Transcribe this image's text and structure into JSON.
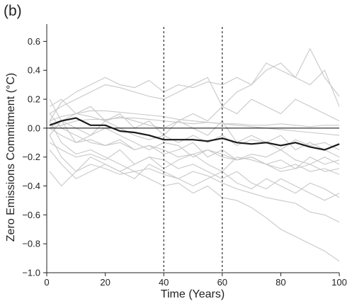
{
  "panel_label": "(b)",
  "chart_data": {
    "type": "line",
    "title": "",
    "xlabel": "Time (Years)",
    "ylabel": "Zero Emissions Commitment (°C)",
    "xlim": [
      0,
      100
    ],
    "ylim": [
      -1.0,
      0.7
    ],
    "xticks": [
      0,
      20,
      40,
      60,
      80,
      100
    ],
    "xtick_labels": [
      "0",
      "20",
      "40",
      "60",
      "80",
      "100"
    ],
    "yticks": [
      0.6,
      0.4,
      0.2,
      0.0,
      -0.2,
      -0.4,
      -0.6,
      -0.8,
      -1.0
    ],
    "ytick_labels": [
      "0.6",
      "0.4",
      "0.2",
      "0.0",
      "−0.2",
      "−0.4",
      "−0.6",
      "−0.8",
      "−1.0"
    ],
    "reference_lines": {
      "horizontal_y": 0.0,
      "vertical_dashed_x": [
        40,
        60
      ]
    },
    "colors": {
      "ensemble_members": "#c8c8c8",
      "ensemble_mean": "#1a1a1a",
      "reference": "#000000"
    },
    "x": [
      1,
      5,
      10,
      15,
      20,
      25,
      30,
      35,
      40,
      45,
      50,
      55,
      60,
      65,
      70,
      75,
      80,
      85,
      90,
      95,
      100
    ],
    "series": [
      {
        "role": "mean",
        "values": [
          0.02,
          0.05,
          0.07,
          0.02,
          0.02,
          -0.02,
          -0.03,
          -0.05,
          -0.08,
          -0.08,
          -0.08,
          -0.09,
          -0.07,
          -0.1,
          -0.11,
          -0.1,
          -0.12,
          -0.1,
          -0.13,
          -0.15,
          -0.11
        ]
      },
      {
        "role": "member",
        "values": [
          0.05,
          0.18,
          0.25,
          0.3,
          0.35,
          0.3,
          0.28,
          0.33,
          0.25,
          0.3,
          0.28,
          0.32,
          0.3,
          0.35,
          0.3,
          0.45,
          0.4,
          0.35,
          0.55,
          0.35,
          0.22
        ]
      },
      {
        "role": "member",
        "values": [
          0.1,
          0.15,
          0.2,
          0.25,
          0.3,
          0.28,
          0.25,
          0.22,
          0.2,
          0.25,
          0.3,
          0.35,
          0.15,
          0.25,
          0.3,
          0.4,
          0.45,
          0.35,
          0.3,
          0.4,
          0.15
        ]
      },
      {
        "role": "member",
        "values": [
          0.05,
          0.08,
          0.1,
          0.12,
          0.12,
          0.11,
          0.1,
          0.09,
          0.08,
          0.06,
          0.05,
          0.04,
          0.03,
          0.02,
          0.01,
          0.0,
          -0.01,
          -0.02,
          -0.03,
          -0.04,
          -0.05
        ]
      },
      {
        "role": "member",
        "values": [
          0.0,
          0.02,
          0.05,
          0.06,
          0.06,
          0.07,
          0.07,
          0.06,
          0.05,
          0.04,
          0.03,
          0.04,
          0.03,
          0.03,
          0.02,
          0.02,
          0.03,
          0.02,
          0.01,
          0.02,
          0.02
        ]
      },
      {
        "role": "member",
        "values": [
          -0.05,
          -0.2,
          -0.3,
          -0.25,
          -0.28,
          -0.32,
          -0.3,
          -0.35,
          -0.4,
          -0.38,
          -0.45,
          -0.4,
          -0.48,
          -0.5,
          -0.55,
          -0.62,
          -0.7,
          -0.75,
          -0.8,
          -0.85,
          -0.92
        ]
      },
      {
        "role": "member",
        "values": [
          0.05,
          -0.1,
          -0.18,
          -0.15,
          -0.2,
          -0.25,
          -0.3,
          -0.28,
          -0.32,
          -0.35,
          -0.3,
          -0.33,
          -0.38,
          -0.42,
          -0.45,
          -0.48,
          -0.5,
          -0.52,
          -0.58,
          -0.6,
          -0.65
        ]
      },
      {
        "role": "member",
        "values": [
          -0.3,
          -0.4,
          -0.3,
          -0.2,
          -0.25,
          -0.3,
          -0.25,
          -0.2,
          -0.22,
          -0.28,
          -0.25,
          -0.3,
          -0.35,
          -0.3,
          -0.38,
          -0.42,
          -0.35,
          -0.4,
          -0.45,
          -0.5,
          -0.45
        ]
      },
      {
        "role": "member",
        "values": [
          0.2,
          0.05,
          -0.1,
          -0.05,
          0.0,
          -0.05,
          -0.1,
          -0.15,
          -0.1,
          -0.12,
          -0.2,
          -0.15,
          -0.18,
          -0.22,
          -0.2,
          -0.25,
          -0.28,
          -0.25,
          -0.3,
          -0.28,
          -0.32
        ]
      },
      {
        "role": "member",
        "values": [
          -0.1,
          -0.15,
          -0.2,
          -0.18,
          -0.22,
          -0.15,
          -0.25,
          -0.2,
          -0.28,
          -0.22,
          -0.18,
          -0.25,
          -0.3,
          -0.2,
          -0.22,
          -0.25,
          -0.3,
          -0.28,
          -0.2,
          -0.25,
          -0.22
        ]
      },
      {
        "role": "member",
        "values": [
          0.1,
          0.0,
          -0.05,
          -0.1,
          -0.12,
          -0.08,
          -0.15,
          -0.12,
          -0.18,
          -0.15,
          -0.1,
          -0.2,
          -0.15,
          -0.22,
          -0.18,
          -0.2,
          -0.15,
          -0.22,
          -0.25,
          -0.2,
          -0.25
        ]
      },
      {
        "role": "member",
        "values": [
          -0.05,
          0.05,
          0.0,
          -0.05,
          0.05,
          0.0,
          -0.05,
          -0.08,
          -0.05,
          -0.1,
          -0.05,
          -0.1,
          -0.05,
          -0.12,
          -0.08,
          -0.1,
          -0.15,
          -0.08,
          -0.12,
          -0.1,
          -0.15
        ]
      },
      {
        "role": "member",
        "values": [
          0.15,
          0.2,
          0.1,
          0.15,
          0.05,
          0.1,
          0.0,
          0.05,
          -0.05,
          0.05,
          0.0,
          -0.05,
          0.05,
          -0.1,
          -0.05,
          -0.1,
          -0.05,
          -0.15,
          -0.1,
          -0.15,
          -0.2
        ]
      },
      {
        "role": "member",
        "values": [
          -0.15,
          -0.25,
          -0.35,
          -0.3,
          -0.25,
          -0.3,
          -0.35,
          -0.25,
          -0.3,
          -0.35,
          -0.4,
          -0.35,
          -0.3,
          -0.38,
          -0.42,
          -0.35,
          -0.4,
          -0.45,
          -0.38,
          -0.42,
          -0.48
        ]
      },
      {
        "role": "member",
        "values": [
          0.0,
          -0.05,
          -0.1,
          -0.08,
          -0.12,
          -0.1,
          -0.15,
          -0.12,
          -0.15,
          -0.2,
          -0.18,
          -0.15,
          -0.2,
          -0.22,
          -0.2,
          -0.25,
          -0.22,
          -0.28,
          -0.25,
          -0.3,
          -0.28
        ]
      },
      {
        "role": "member",
        "values": [
          0.0,
          0.05,
          0.1,
          0.08,
          0.05,
          0.08,
          0.05,
          0.02,
          0.0,
          0.05,
          0.1,
          0.05,
          0.15,
          0.1,
          0.2,
          0.15,
          0.1,
          0.2,
          0.15,
          0.1,
          0.05
        ]
      }
    ]
  }
}
